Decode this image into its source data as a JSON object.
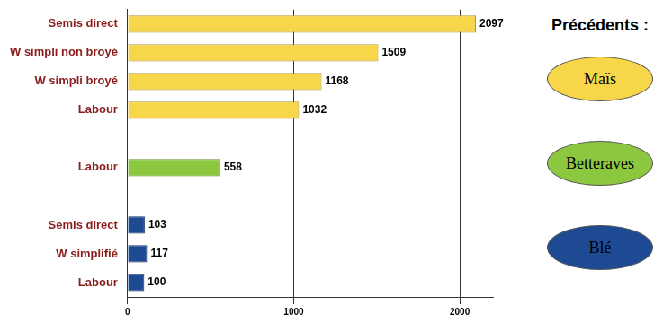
{
  "chart_data": {
    "type": "bar",
    "orientation": "horizontal",
    "categories": [
      "Semis direct",
      "W simpli non broyé",
      "W simpli broyé",
      "Labour",
      null,
      "Labour",
      null,
      "Semis direct",
      "W simplifié",
      "Labour"
    ],
    "series": [
      {
        "name": "Maïs",
        "color": "#f7d64a",
        "values": [
          2097,
          1509,
          1168,
          1032,
          null,
          null,
          null,
          null,
          null,
          null
        ]
      },
      {
        "name": "Betteraves",
        "color": "#8cc83f",
        "values": [
          null,
          null,
          null,
          null,
          null,
          558,
          null,
          null,
          null,
          null
        ]
      },
      {
        "name": "Blé",
        "color": "#1d4a93",
        "values": [
          null,
          null,
          null,
          null,
          null,
          null,
          null,
          103,
          117,
          100
        ]
      }
    ],
    "xlim": [
      0,
      2200
    ],
    "xticks": [
      0,
      1000,
      2000
    ],
    "grid": true,
    "data_labels": true,
    "legend": "right",
    "legend_title": "Précédents :"
  }
}
